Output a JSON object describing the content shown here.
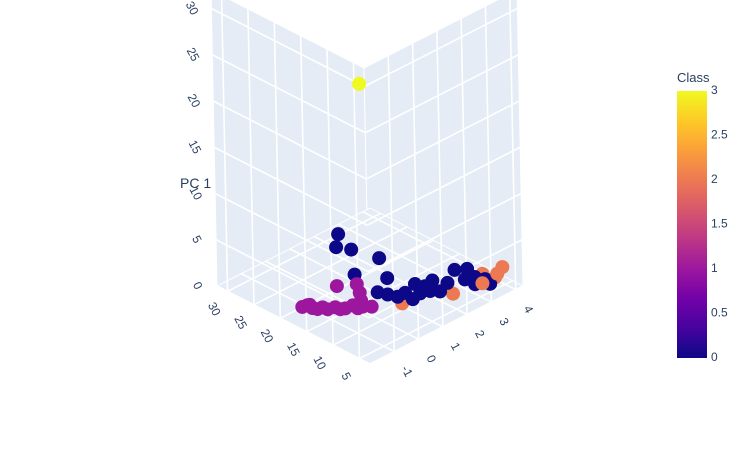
{
  "chart_data": {
    "type": "scatter",
    "dimensions": 3,
    "axes": {
      "x": {
        "title": "PC 1",
        "tick_labels": [
          "0",
          "5",
          "10",
          "15",
          "20",
          "25",
          "30"
        ],
        "range": [
          0,
          32
        ]
      },
      "y": {
        "title": "",
        "tick_labels": [
          "5",
          "10",
          "15",
          "20",
          "25",
          "30"
        ],
        "range": [
          3,
          32
        ]
      },
      "z": {
        "title": "",
        "tick_labels": [
          "-1",
          "0",
          "1",
          "2",
          "3",
          "4"
        ],
        "range": [
          -2,
          4.3
        ]
      }
    },
    "points": [
      {
        "x": 30.0,
        "y": 4.0,
        "z": -2.0,
        "class": 3
      },
      {
        "x": 3.0,
        "y": 6.0,
        "z": 0.0,
        "class": 2
      },
      {
        "x": 2.0,
        "y": 5.0,
        "z": 3.9,
        "class": 2
      },
      {
        "x": 1.0,
        "y": 5.5,
        "z": 3.7,
        "class": 2
      },
      {
        "x": 1.5,
        "y": 6.5,
        "z": 3.4,
        "class": 2
      },
      {
        "x": 1.0,
        "y": 6.0,
        "z": 3.9,
        "class": 2
      },
      {
        "x": 0.2,
        "y": 7.0,
        "z": 3.5,
        "class": 2
      },
      {
        "x": 0.4,
        "y": 7.5,
        "z": 2.4,
        "class": 2
      },
      {
        "x": 0.5,
        "y": 19.0,
        "z": -1.1,
        "class": 1
      },
      {
        "x": 0.3,
        "y": 19.5,
        "z": -1.2,
        "class": 1
      },
      {
        "x": 0.2,
        "y": 18.5,
        "z": -1.0,
        "class": 1
      },
      {
        "x": 0.1,
        "y": 18.0,
        "z": -0.9,
        "class": 1
      },
      {
        "x": 0.3,
        "y": 17.5,
        "z": -0.8,
        "class": 1
      },
      {
        "x": 0.1,
        "y": 17.0,
        "z": -0.7,
        "class": 1
      },
      {
        "x": 0.2,
        "y": 16.5,
        "z": -0.5,
        "class": 1
      },
      {
        "x": 0.0,
        "y": 16.0,
        "z": -0.4,
        "class": 1
      },
      {
        "x": 0.1,
        "y": 15.5,
        "z": -0.3,
        "class": 1
      },
      {
        "x": 0.3,
        "y": 15.0,
        "z": -0.1,
        "class": 1
      },
      {
        "x": 0.0,
        "y": 14.5,
        "z": 0.0,
        "class": 1
      },
      {
        "x": 0.2,
        "y": 14.0,
        "z": 0.1,
        "class": 1
      },
      {
        "x": 1.0,
        "y": 15.5,
        "z": 0.3,
        "class": 1
      },
      {
        "x": 1.5,
        "y": 16.5,
        "z": 0.4,
        "class": 1
      },
      {
        "x": 0.5,
        "y": 14.8,
        "z": 0.2,
        "class": 1
      },
      {
        "x": 1.8,
        "y": 17.5,
        "z": -0.2,
        "class": 1
      },
      {
        "x": 0.4,
        "y": 19.0,
        "z": -1.0,
        "class": 1
      },
      {
        "x": 0.0,
        "y": 13.5,
        "z": 0.35,
        "class": 1
      },
      {
        "x": 7.0,
        "y": 18.0,
        "z": 0.0,
        "class": 0
      },
      {
        "x": 6.0,
        "y": 17.5,
        "z": -0.2,
        "class": 0
      },
      {
        "x": 5.5,
        "y": 16.5,
        "z": 0.2,
        "class": 0
      },
      {
        "x": 4.5,
        "y": 14.0,
        "z": 0.8,
        "class": 0
      },
      {
        "x": 3.5,
        "y": 15.0,
        "z": 0.0,
        "class": 0
      },
      {
        "x": 2.5,
        "y": 13.0,
        "z": 0.9,
        "class": 0
      },
      {
        "x": 1.5,
        "y": 13.0,
        "z": 0.5,
        "class": 0
      },
      {
        "x": 1.0,
        "y": 12.5,
        "z": 0.8,
        "class": 0
      },
      {
        "x": 0.5,
        "y": 12.0,
        "z": 1.1,
        "class": 0
      },
      {
        "x": 1.5,
        "y": 11.0,
        "z": 1.6,
        "class": 0
      },
      {
        "x": 0.8,
        "y": 11.5,
        "z": 1.3,
        "class": 0
      },
      {
        "x": 1.0,
        "y": 10.5,
        "z": 1.9,
        "class": 0
      },
      {
        "x": 1.5,
        "y": 10.0,
        "z": 2.1,
        "class": 0
      },
      {
        "x": 0.5,
        "y": 10.0,
        "z": 2.0,
        "class": 0
      },
      {
        "x": 1.0,
        "y": 9.0,
        "z": 2.5,
        "class": 0
      },
      {
        "x": 2.0,
        "y": 9.0,
        "z": 2.8,
        "class": 0
      },
      {
        "x": 1.0,
        "y": 8.0,
        "z": 3.0,
        "class": 0
      },
      {
        "x": 2.0,
        "y": 8.0,
        "z": 3.1,
        "class": 0
      },
      {
        "x": 0.5,
        "y": 7.0,
        "z": 3.2,
        "class": 0
      },
      {
        "x": 1.0,
        "y": 7.5,
        "z": 3.3,
        "class": 0
      },
      {
        "x": 0.3,
        "y": 6.0,
        "z": 3.6,
        "class": 0
      },
      {
        "x": 0.8,
        "y": 6.5,
        "z": 3.5,
        "class": 0
      },
      {
        "x": 0.5,
        "y": 10.5,
        "z": 1.7,
        "class": 0
      },
      {
        "x": 0.0,
        "y": 11.0,
        "z": 1.5,
        "class": 0
      },
      {
        "x": 0.2,
        "y": 9.5,
        "z": 2.3,
        "class": 0
      }
    ],
    "colorbar": {
      "title": "Class",
      "range": [
        0,
        3
      ],
      "tick_labels": [
        "0",
        "0.5",
        "1",
        "1.5",
        "2",
        "2.5",
        "3"
      ],
      "colorscale": [
        "#0d0887",
        "#46039f",
        "#7201a8",
        "#9c179e",
        "#bd3786",
        "#d8576b",
        "#ed7953",
        "#fb9f3a",
        "#fdca26",
        "#f0f921"
      ]
    },
    "colors": {
      "scene_bg": "#e5ecf6",
      "grid": "#ffffff",
      "text": "#2a3f5f"
    }
  }
}
